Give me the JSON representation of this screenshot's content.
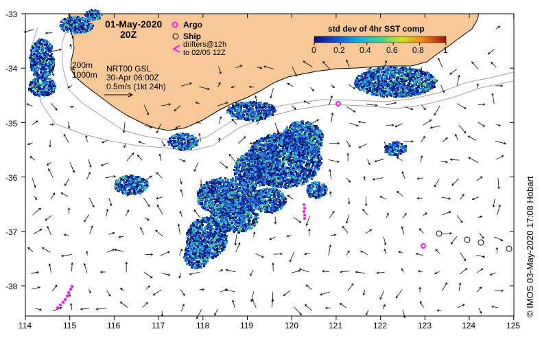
{
  "header": {
    "date": "01-May-2020",
    "hour": "20Z"
  },
  "legend": {
    "argo_label": "Argo",
    "ship_label": "Ship",
    "drifters_line1": "drifters@12h",
    "drifters_line2": "to 02/05 12Z"
  },
  "isobaths": {
    "shallow": "200m",
    "deep": "1000m"
  },
  "currents": {
    "source": "NRT00 GSL",
    "time": "30-Apr 06:00Z",
    "scale": "0.5m/s (1kt 24h)"
  },
  "colorbar": {
    "title": "std dev of 4hr SST comp",
    "ticks": [
      "0",
      "0.2",
      "0.4",
      "0.6",
      "0.8",
      "1"
    ],
    "colors": [
      "#0a0a7a",
      "#1050d0",
      "#10b0e0",
      "#40d090",
      "#d0e020",
      "#f08010",
      "#9a1010"
    ]
  },
  "axes": {
    "lon_ticks": [
      "114",
      "115",
      "116",
      "117",
      "118",
      "119",
      "120",
      "121",
      "122",
      "123",
      "124",
      "125"
    ],
    "lat_ticks": [
      "-33",
      "-34",
      "-35",
      "-36",
      "-37",
      "-38"
    ]
  },
  "credit": "© IMOS 03-May-2020 17:08 Hobart",
  "colors": {
    "land": "#f8c898",
    "sst_dark": "#0c1e8c",
    "sst_mid": "#1a58c8",
    "argo": "#f020f0",
    "isobath": "#a0a0a0"
  }
}
